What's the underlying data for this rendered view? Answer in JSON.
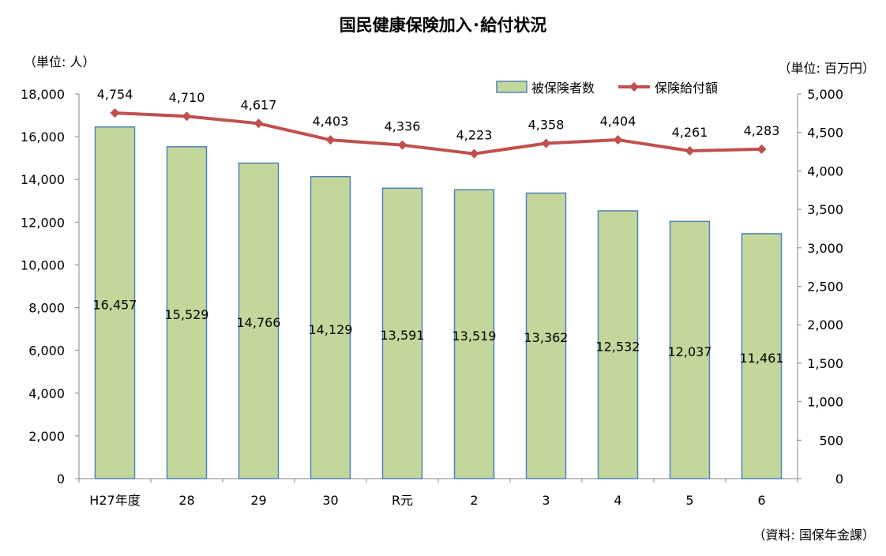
{
  "chart_data": {
    "type": "bar+line",
    "title": "国民健康保険加入･給付状況",
    "left_unit": "（単位: 人）",
    "right_unit": "（単位: 百万円）",
    "source": "（資料: 国保年金課）",
    "categories": [
      "H27年度",
      "28",
      "29",
      "30",
      "R元",
      "2",
      "3",
      "4",
      "5",
      "6"
    ],
    "series": [
      {
        "name": "被保険者数",
        "type": "bar",
        "axis": "left",
        "color": "#c4d79b",
        "edge": "#4f81bd",
        "values": [
          16457,
          15529,
          14766,
          14129,
          13591,
          13519,
          13362,
          12532,
          12037,
          11461
        ],
        "labels": [
          "16,457",
          "15,529",
          "14,766",
          "14,129",
          "13,591",
          "13,519",
          "13,362",
          "12,532",
          "12,037",
          "11,461"
        ]
      },
      {
        "name": "保険給付額",
        "type": "line",
        "axis": "right",
        "color": "#c0504d",
        "values": [
          4754,
          4710,
          4617,
          4403,
          4336,
          4223,
          4358,
          4404,
          4261,
          4283
        ],
        "labels": [
          "4,754",
          "4,710",
          "4,617",
          "4,403",
          "4,336",
          "4,223",
          "4,358",
          "4,404",
          "4,261",
          "4,283"
        ]
      }
    ],
    "left_axis": {
      "range": [
        0,
        18000
      ],
      "ticks": [
        "0",
        "2,000",
        "4,000",
        "6,000",
        "8,000",
        "10,000",
        "12,000",
        "14,000",
        "16,000",
        "18,000"
      ]
    },
    "right_axis": {
      "range": [
        0,
        5000
      ],
      "ticks": [
        "0",
        "500",
        "1,000",
        "1,500",
        "2,000",
        "2,500",
        "3,000",
        "3,500",
        "4,000",
        "4,500",
        "5,000"
      ]
    },
    "grid": false,
    "legend": "top-right"
  }
}
